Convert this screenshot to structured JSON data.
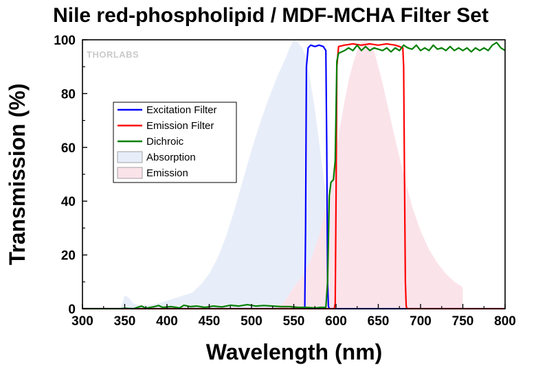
{
  "chart_data": {
    "type": "line",
    "title": "Nile red-phospholipid / MDF-MCHA Filter Set",
    "xlabel": "Wavelength (nm)",
    "ylabel": "Transmission (%)",
    "xlim": [
      300,
      800
    ],
    "ylim": [
      0,
      100
    ],
    "x_ticks": [
      "300",
      "350",
      "400",
      "450",
      "500",
      "550",
      "600",
      "650",
      "700",
      "750",
      "800"
    ],
    "y_ticks": [
      "0",
      "20",
      "40",
      "60",
      "80",
      "100"
    ],
    "legend_position": "upper-left",
    "watermark": "THORLABS",
    "series": [
      {
        "name": "Excitation Filter",
        "style": "line",
        "color": "#0000ff",
        "points": [
          [
            300,
            0
          ],
          [
            563,
            0
          ],
          [
            564,
            30
          ],
          [
            565,
            90
          ],
          [
            567,
            97
          ],
          [
            570,
            98
          ],
          [
            575,
            97.5
          ],
          [
            580,
            98
          ],
          [
            585,
            97.5
          ],
          [
            588,
            96
          ],
          [
            589,
            60
          ],
          [
            590,
            10
          ],
          [
            591,
            1
          ],
          [
            592,
            0
          ],
          [
            800,
            0
          ]
        ]
      },
      {
        "name": "Emission Filter",
        "style": "line",
        "color": "#ff0000",
        "points": [
          [
            300,
            0
          ],
          [
            598,
            0
          ],
          [
            599,
            2
          ],
          [
            600,
            40
          ],
          [
            601,
            90
          ],
          [
            603,
            97.5
          ],
          [
            610,
            98
          ],
          [
            620,
            98.5
          ],
          [
            630,
            98
          ],
          [
            640,
            98.5
          ],
          [
            650,
            98
          ],
          [
            660,
            98.5
          ],
          [
            670,
            98
          ],
          [
            675,
            97.5
          ],
          [
            679,
            97
          ],
          [
            680,
            90
          ],
          [
            681,
            50
          ],
          [
            682,
            10
          ],
          [
            683,
            1
          ],
          [
            684,
            0
          ],
          [
            800,
            0
          ]
        ]
      },
      {
        "name": "Dichroic",
        "style": "line",
        "color": "#008000",
        "points": [
          [
            300,
            0
          ],
          [
            345,
            0
          ],
          [
            350,
            0.2
          ],
          [
            360,
            0
          ],
          [
            370,
            1
          ],
          [
            375,
            0.2
          ],
          [
            385,
            0.8
          ],
          [
            390,
            1.2
          ],
          [
            395,
            0.5
          ],
          [
            405,
            0.8
          ],
          [
            415,
            0.3
          ],
          [
            420,
            1.3
          ],
          [
            428,
            0.8
          ],
          [
            435,
            1
          ],
          [
            445,
            0.5
          ],
          [
            455,
            1
          ],
          [
            465,
            0.7
          ],
          [
            475,
            1.3
          ],
          [
            485,
            1
          ],
          [
            495,
            1.5
          ],
          [
            505,
            1
          ],
          [
            515,
            1.2
          ],
          [
            525,
            1
          ],
          [
            535,
            0.8
          ],
          [
            545,
            0.8
          ],
          [
            555,
            0.5
          ],
          [
            565,
            0.5
          ],
          [
            575,
            0.3
          ],
          [
            582,
            0.5
          ],
          [
            588,
            0.5
          ],
          [
            590,
            10
          ],
          [
            592,
            42
          ],
          [
            594,
            47
          ],
          [
            597,
            48
          ],
          [
            599,
            55
          ],
          [
            601,
            92
          ],
          [
            603,
            95
          ],
          [
            610,
            96
          ],
          [
            615,
            97
          ],
          [
            620,
            96
          ],
          [
            625,
            98
          ],
          [
            630,
            96
          ],
          [
            635,
            97.5
          ],
          [
            640,
            96
          ],
          [
            645,
            97
          ],
          [
            650,
            96.5
          ],
          [
            655,
            96
          ],
          [
            660,
            97
          ],
          [
            665,
            95.5
          ],
          [
            670,
            97
          ],
          [
            675,
            96
          ],
          [
            680,
            98
          ],
          [
            685,
            97
          ],
          [
            690,
            96.5
          ],
          [
            695,
            98
          ],
          [
            700,
            96
          ],
          [
            705,
            97
          ],
          [
            710,
            96
          ],
          [
            715,
            98
          ],
          [
            720,
            96.5
          ],
          [
            725,
            97
          ],
          [
            730,
            96
          ],
          [
            735,
            97.5
          ],
          [
            740,
            96
          ],
          [
            745,
            97
          ],
          [
            750,
            96
          ],
          [
            755,
            97
          ],
          [
            760,
            95.5
          ],
          [
            765,
            97
          ],
          [
            770,
            96
          ],
          [
            775,
            97
          ],
          [
            780,
            96
          ],
          [
            785,
            98
          ],
          [
            790,
            99
          ],
          [
            795,
            97
          ],
          [
            800,
            96
          ]
        ]
      },
      {
        "name": "Absorption",
        "style": "area",
        "color": "#e8eef9",
        "points": [
          [
            345,
            0
          ],
          [
            350,
            5
          ],
          [
            355,
            4
          ],
          [
            360,
            2
          ],
          [
            370,
            1
          ],
          [
            380,
            1.5
          ],
          [
            390,
            2
          ],
          [
            400,
            3
          ],
          [
            410,
            4
          ],
          [
            420,
            5
          ],
          [
            430,
            6
          ],
          [
            440,
            9
          ],
          [
            450,
            13
          ],
          [
            460,
            19
          ],
          [
            470,
            27
          ],
          [
            480,
            37
          ],
          [
            490,
            48
          ],
          [
            500,
            59
          ],
          [
            510,
            69
          ],
          [
            520,
            78
          ],
          [
            530,
            86
          ],
          [
            540,
            93
          ],
          [
            545,
            97
          ],
          [
            550,
            100
          ],
          [
            555,
            99
          ],
          [
            560,
            97
          ],
          [
            565,
            93
          ],
          [
            570,
            84
          ],
          [
            575,
            74
          ],
          [
            580,
            62
          ],
          [
            585,
            50
          ],
          [
            590,
            38
          ],
          [
            595,
            27
          ],
          [
            600,
            18
          ],
          [
            605,
            11
          ],
          [
            610,
            6
          ],
          [
            615,
            3
          ],
          [
            620,
            1
          ],
          [
            630,
            0
          ]
        ]
      },
      {
        "name": "Emission",
        "style": "area",
        "color": "#fbe3ea",
        "points": [
          [
            530,
            0
          ],
          [
            540,
            3
          ],
          [
            550,
            8
          ],
          [
            560,
            12
          ],
          [
            570,
            18
          ],
          [
            580,
            27
          ],
          [
            590,
            40
          ],
          [
            600,
            58
          ],
          [
            605,
            68
          ],
          [
            610,
            77
          ],
          [
            615,
            85
          ],
          [
            620,
            91
          ],
          [
            625,
            96
          ],
          [
            630,
            99
          ],
          [
            635,
            100
          ],
          [
            640,
            99
          ],
          [
            645,
            96
          ],
          [
            650,
            90
          ],
          [
            655,
            84
          ],
          [
            660,
            77
          ],
          [
            670,
            63
          ],
          [
            680,
            50
          ],
          [
            690,
            38
          ],
          [
            700,
            29
          ],
          [
            710,
            22
          ],
          [
            720,
            17
          ],
          [
            730,
            13
          ],
          [
            740,
            10
          ],
          [
            750,
            8
          ],
          [
            750,
            0
          ]
        ]
      }
    ]
  }
}
